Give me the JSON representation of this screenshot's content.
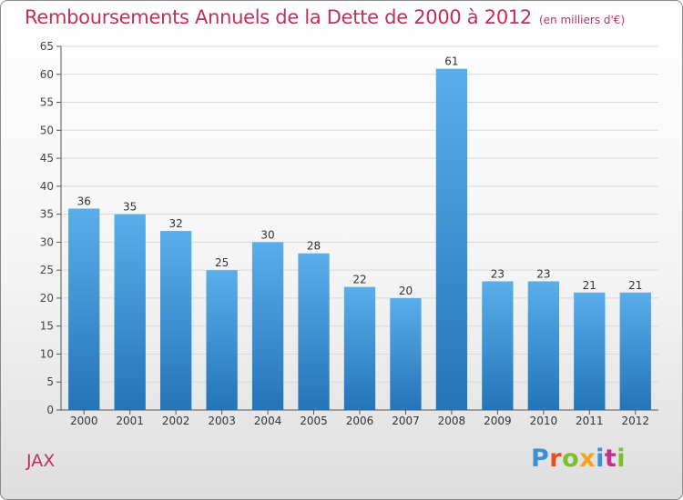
{
  "chart_data": {
    "type": "bar",
    "title": "Remboursements Annuels de la Dette de 2000 à 2012",
    "subtitle": "(en milliers d'€)",
    "categories": [
      "2000",
      "2001",
      "2002",
      "2003",
      "2004",
      "2005",
      "2006",
      "2007",
      "2008",
      "2009",
      "2010",
      "2011",
      "2012"
    ],
    "values": [
      36,
      35,
      32,
      25,
      30,
      28,
      22,
      20,
      61,
      23,
      23,
      21,
      21
    ],
    "ylim": [
      0,
      65
    ],
    "yticks": [
      0,
      5,
      10,
      15,
      20,
      25,
      30,
      35,
      40,
      45,
      50,
      55,
      60,
      65
    ],
    "grid": true,
    "bar_color": "#3a8fd6"
  },
  "footer": {
    "location": "JAX",
    "brand": "Proxiti",
    "brand_colors": [
      "#3d8fd6",
      "#e84f1b",
      "#7bbf29",
      "#f5a318",
      "#3d8fd6",
      "#c5308a",
      "#7bbf29"
    ]
  }
}
